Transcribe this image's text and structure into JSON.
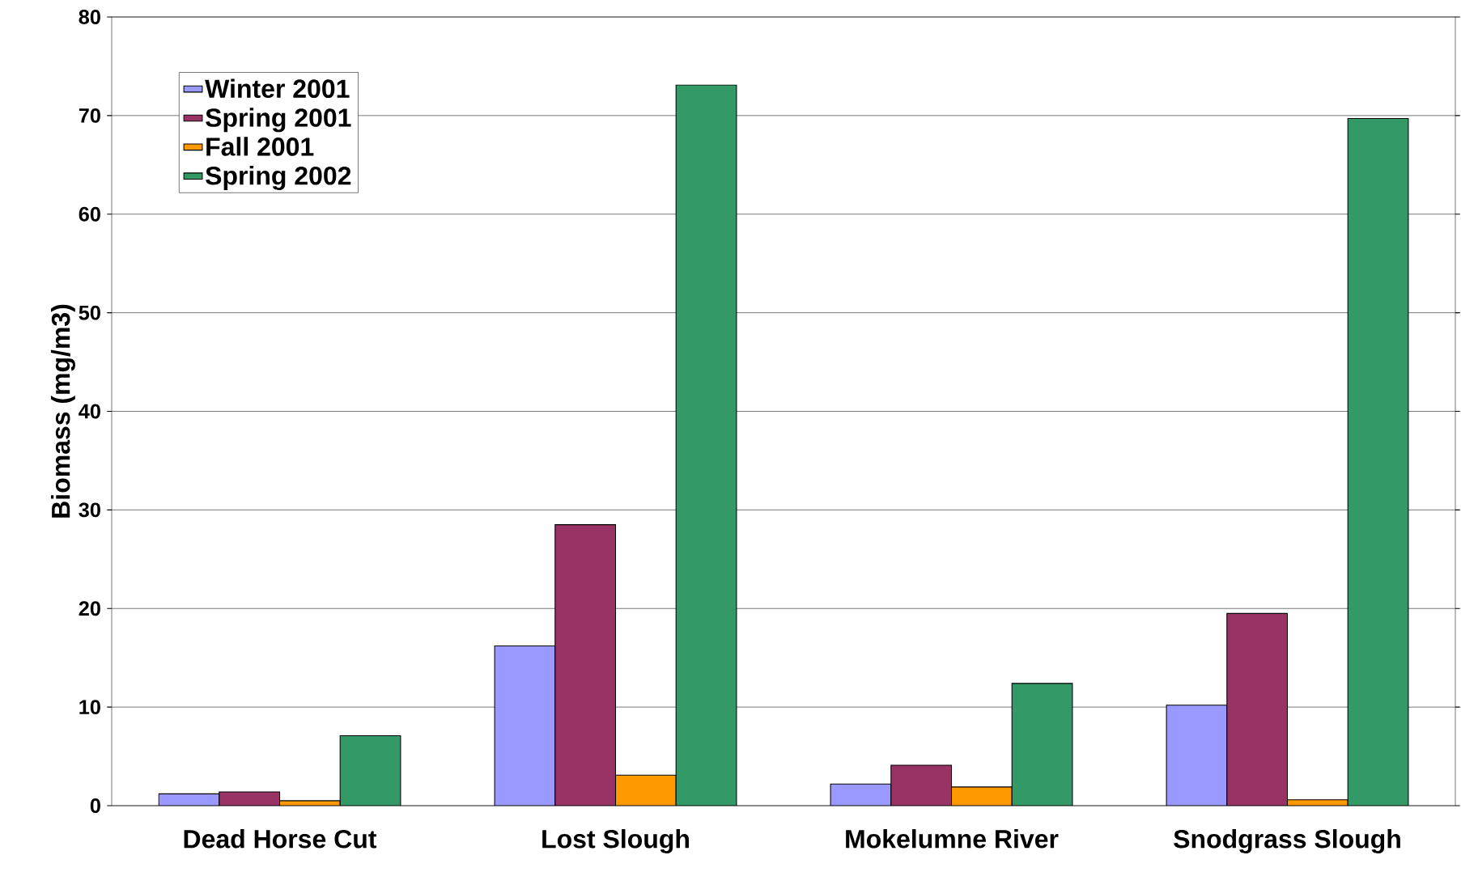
{
  "chart_data": {
    "type": "bar",
    "ylabel": "Biomass (mg/m3)",
    "categories": [
      "Dead Horse Cut",
      "Lost Slough",
      "Mokelumne River",
      "Snodgrass Slough"
    ],
    "series": [
      {
        "name": "Winter 2001",
        "color": "#9999ff",
        "values": [
          1.2,
          16.2,
          2.2,
          10.2
        ]
      },
      {
        "name": "Spring 2001",
        "color": "#993366",
        "values": [
          1.4,
          28.5,
          4.1,
          19.5
        ]
      },
      {
        "name": "Fall 2001",
        "color": "#ff9900",
        "values": [
          0.5,
          3.1,
          1.9,
          0.6
        ]
      },
      {
        "name": "Spring 2002",
        "color": "#339966",
        "values": [
          7.1,
          73.1,
          12.4,
          69.7
        ]
      }
    ],
    "ylim": [
      0,
      80
    ],
    "yticks": [
      0,
      10,
      20,
      30,
      40,
      50,
      60,
      70,
      80
    ],
    "grid": "y",
    "legend": "top left"
  }
}
